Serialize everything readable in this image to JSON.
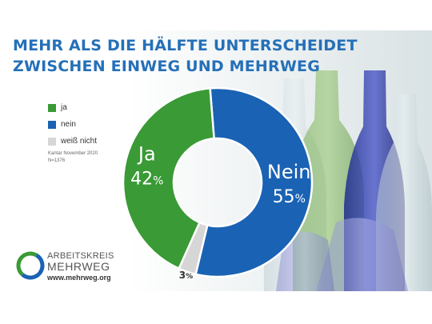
{
  "title_line1": "MEHR ALS DIE HÄLFTE UNTERSCHEIDET",
  "title_line2": "ZWISCHEN EINWEG UND MEHRWEG",
  "legend": [
    {
      "label": "ja",
      "color": "#3a9a35"
    },
    {
      "label": "nein",
      "color": "#1a62b4"
    },
    {
      "label": "weiß nicht",
      "color": "#d6d6d6"
    }
  ],
  "source_line1": "Kantar November 2020",
  "source_line2": "N=1376",
  "org": {
    "line1": "ARBEITSKREIS",
    "line2": "MEHRWEG",
    "url": "www.mehrweg.org"
  },
  "chart_data": {
    "type": "pie",
    "style": "donut",
    "labels": [
      "nein",
      "weiß nicht",
      "ja"
    ],
    "values": [
      55,
      3,
      42
    ],
    "display_labels": [
      "Nein",
      "",
      "Ja"
    ],
    "value_text": [
      "55",
      "3",
      "42"
    ],
    "unit": "%",
    "colors": [
      "#1a62b4",
      "#d6d6d6",
      "#3a9a35"
    ],
    "legend_position": "left"
  }
}
